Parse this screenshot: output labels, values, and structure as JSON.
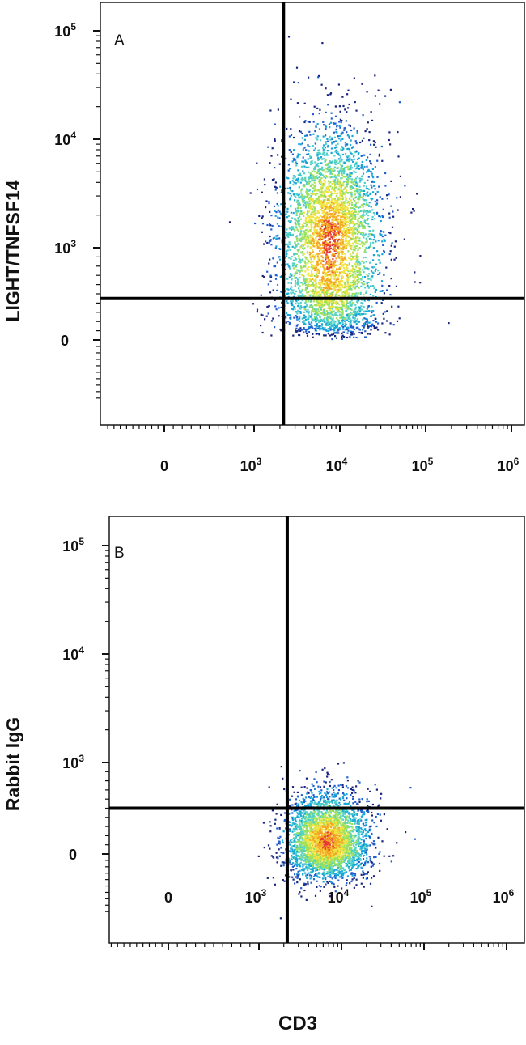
{
  "colors": {
    "density_ramp": [
      "#1a237e",
      "#1e5fd1",
      "#17a6d8",
      "#4fd1c5",
      "#9be15d",
      "#f0e442",
      "#f5a623",
      "#e53935"
    ],
    "gate_line": "#000000",
    "frame": "#1a1a1a"
  },
  "chart_data": [
    {
      "type": "scatter",
      "panel_label": "A",
      "title": "",
      "xlabel": "",
      "ylabel": "LIGHT/TNFSF14",
      "x_scale": "biexponential",
      "y_scale": "biexponential",
      "x_tick_labels": [
        {
          "value": 0,
          "label": "0"
        },
        {
          "value": 1000,
          "base": "10",
          "exp": "3"
        },
        {
          "value": 10000,
          "base": "10",
          "exp": "4"
        },
        {
          "value": 100000,
          "base": "10",
          "exp": "5"
        },
        {
          "value": 1000000,
          "base": "10",
          "exp": "6"
        }
      ],
      "y_tick_labels": [
        {
          "value": 0,
          "label": "0"
        },
        {
          "value": 1000,
          "base": "10",
          "exp": "3"
        },
        {
          "value": 10000,
          "base": "10",
          "exp": "4"
        },
        {
          "value": 100000,
          "base": "10",
          "exp": "5"
        }
      ],
      "xlim": [
        -1000,
        1300000
      ],
      "ylim": [
        -1000,
        250000
      ],
      "quadrant_gate": {
        "x": 2200,
        "y": 450
      },
      "population": {
        "center": [
          7500,
          1200
        ],
        "spread_log": [
          0.3,
          0.5
        ],
        "n_events": 4200
      }
    },
    {
      "type": "scatter",
      "panel_label": "B",
      "title": "",
      "xlabel": "CD3",
      "ylabel": "Rabbit IgG",
      "x_scale": "biexponential",
      "y_scale": "biexponential",
      "x_tick_labels": [
        {
          "value": 0,
          "label": "0"
        },
        {
          "value": 1000,
          "base": "10",
          "exp": "3"
        },
        {
          "value": 10000,
          "base": "10",
          "exp": "4"
        },
        {
          "value": 100000,
          "base": "10",
          "exp": "5"
        },
        {
          "value": 1000000,
          "base": "10",
          "exp": "6"
        }
      ],
      "y_tick_labels": [
        {
          "value": 0,
          "label": "0"
        },
        {
          "value": 1000,
          "base": "10",
          "exp": "3"
        },
        {
          "value": 10000,
          "base": "10",
          "exp": "4"
        },
        {
          "value": 100000,
          "base": "10",
          "exp": "5"
        }
      ],
      "xlim": [
        -1000,
        1300000
      ],
      "ylim": [
        -1000,
        250000
      ],
      "quadrant_gate": {
        "x": 2200,
        "y": 500
      },
      "population": {
        "center": [
          6500,
          150
        ],
        "spread_log": [
          0.25,
          0.35
        ],
        "n_events": 3200
      }
    }
  ]
}
